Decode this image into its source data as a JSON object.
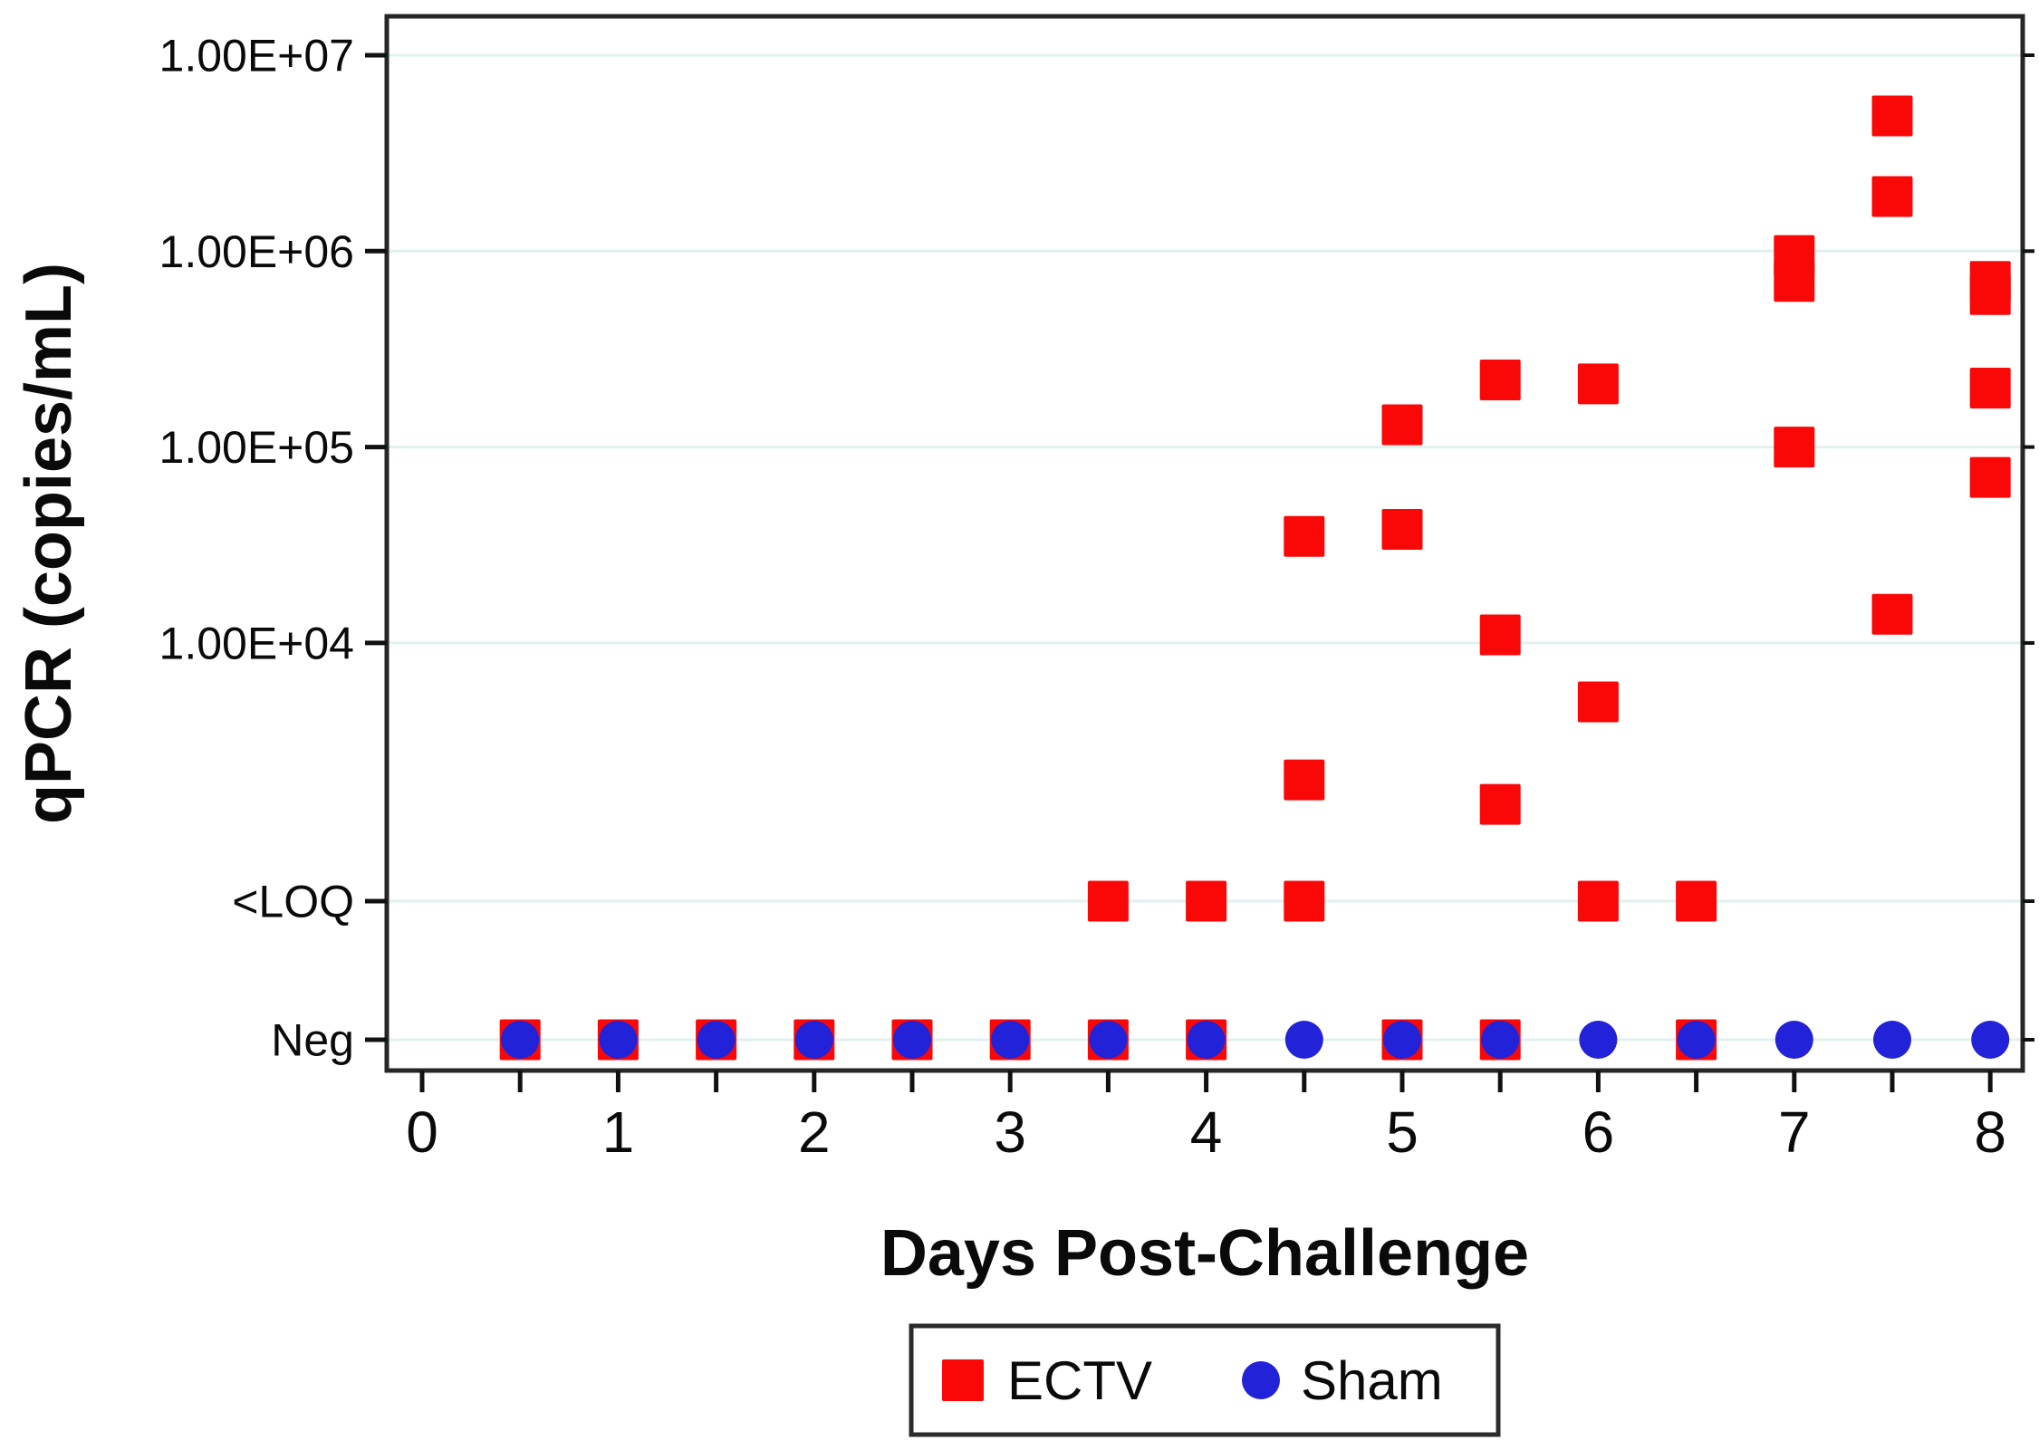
{
  "chart_data": {
    "type": "scatter",
    "title": "",
    "xlabel": "Days Post-Challenge",
    "ylabel": "qPCR (copies/mL)",
    "x_ticks": [
      0,
      1,
      2,
      3,
      4,
      5,
      6,
      7,
      8
    ],
    "x_minor_step": 0.5,
    "xlim": [
      -0.18,
      8.17
    ],
    "y_axis": {
      "scale": "log10 with categorical floor rows",
      "ticks": [
        {
          "label": "1.00E+07",
          "value": 10000000
        },
        {
          "label": "1.00E+06",
          "value": 1000000
        },
        {
          "label": "1.00E+05",
          "value": 100000
        },
        {
          "label": "1.00E+04",
          "value": 10000
        },
        {
          "label": "<LOQ",
          "value": "LOQ"
        },
        {
          "label": "Neg",
          "value": "Neg"
        }
      ],
      "ylim_log10_top": 7.2
    },
    "grid": true,
    "gridline_color": "#E2F0F0",
    "frame_color": "#262626",
    "legend_position": "bottom-center",
    "legend": [
      {
        "label": "ECTV",
        "marker": "square",
        "color": "#FA0808"
      },
      {
        "label": "Sham",
        "marker": "circle",
        "color": "#2222D8"
      }
    ],
    "series": [
      {
        "name": "ECTV",
        "marker": "square",
        "color": "#FA0808",
        "points": [
          {
            "day": 0.5,
            "value": "Neg"
          },
          {
            "day": 1,
            "value": "Neg"
          },
          {
            "day": 1.5,
            "value": "Neg"
          },
          {
            "day": 2,
            "value": "Neg"
          },
          {
            "day": 2.5,
            "value": "Neg"
          },
          {
            "day": 3,
            "value": "Neg"
          },
          {
            "day": 3.5,
            "value": "Neg"
          },
          {
            "day": 4,
            "value": "Neg"
          },
          {
            "day": 5,
            "value": "Neg"
          },
          {
            "day": 5.5,
            "value": "Neg"
          },
          {
            "day": 6.5,
            "value": "Neg"
          },
          {
            "day": 3.5,
            "value": "LOQ"
          },
          {
            "day": 4,
            "value": "LOQ"
          },
          {
            "day": 4.5,
            "value": "LOQ"
          },
          {
            "day": 6,
            "value": "LOQ"
          },
          {
            "day": 6.5,
            "value": "LOQ"
          },
          {
            "day": 4.5,
            "value": 35000
          },
          {
            "day": 4.5,
            "value": 2000
          },
          {
            "day": 5,
            "value": 130000
          },
          {
            "day": 5,
            "value": 38000
          },
          {
            "day": 5.5,
            "value": 220000
          },
          {
            "day": 5.5,
            "value": 11000
          },
          {
            "day": 5.5,
            "value": 1500
          },
          {
            "day": 6,
            "value": 210000
          },
          {
            "day": 6,
            "value": 5000
          },
          {
            "day": 7,
            "value": 950000
          },
          {
            "day": 7,
            "value": 700000
          },
          {
            "day": 7,
            "value": 100000
          },
          {
            "day": 7.5,
            "value": 4900000
          },
          {
            "day": 7.5,
            "value": 1900000
          },
          {
            "day": 7.5,
            "value": 14000
          },
          {
            "day": 8,
            "value": 700000
          },
          {
            "day": 8,
            "value": 600000
          },
          {
            "day": 8,
            "value": 200000
          },
          {
            "day": 8,
            "value": 70000
          }
        ]
      },
      {
        "name": "Sham",
        "marker": "circle",
        "color": "#2222D8",
        "points": [
          {
            "day": 0.5,
            "value": "Neg"
          },
          {
            "day": 1,
            "value": "Neg"
          },
          {
            "day": 1.5,
            "value": "Neg"
          },
          {
            "day": 2,
            "value": "Neg"
          },
          {
            "day": 2.5,
            "value": "Neg"
          },
          {
            "day": 3,
            "value": "Neg"
          },
          {
            "day": 3.5,
            "value": "Neg"
          },
          {
            "day": 4,
            "value": "Neg"
          },
          {
            "day": 4.5,
            "value": "Neg"
          },
          {
            "day": 5,
            "value": "Neg"
          },
          {
            "day": 5.5,
            "value": "Neg"
          },
          {
            "day": 6,
            "value": "Neg"
          },
          {
            "day": 6.5,
            "value": "Neg"
          },
          {
            "day": 7,
            "value": "Neg"
          },
          {
            "day": 7.5,
            "value": "Neg"
          },
          {
            "day": 8,
            "value": "Neg"
          }
        ]
      }
    ]
  }
}
